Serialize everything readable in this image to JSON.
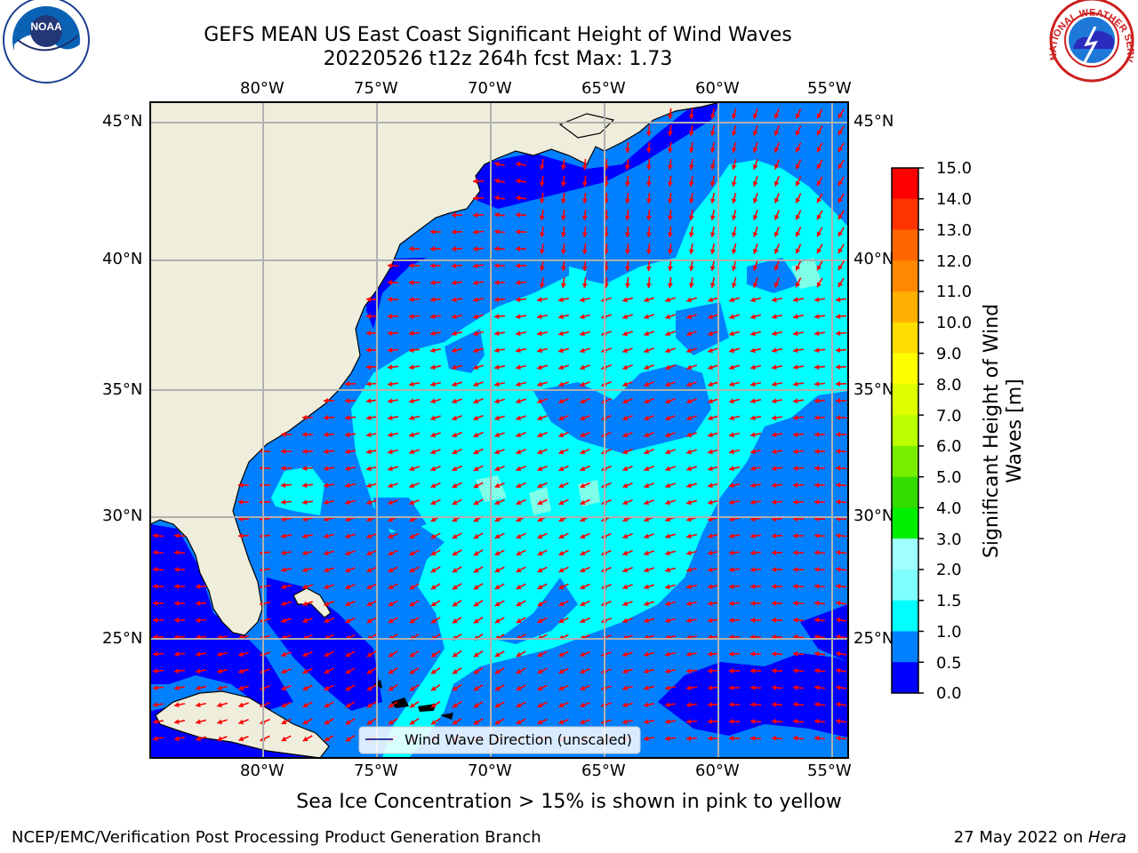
{
  "title": {
    "line1": "GEFS MEAN US East Coast Significant Height of Wind Waves",
    "line2": "20220526 t12z 264h fcst   Max: 1.73"
  },
  "map": {
    "lon_labels": [
      "80°W",
      "75°W",
      "70°W",
      "65°W",
      "60°W",
      "55°W"
    ],
    "lat_labels": [
      "45°N",
      "40°N",
      "35°N",
      "30°N",
      "25°N"
    ],
    "lon_range": [
      -85,
      -54.3
    ],
    "lat_range": [
      20.5,
      45.7
    ],
    "legend_label": "Wind Wave Direction (unscaled)",
    "colors": {
      "land": "#efeedc",
      "ocean_low": "#0000ff",
      "ocean_mid": "#0080ff",
      "ocean_high": "#00ffff",
      "ocean_top": "#7fffe8",
      "arrows": "#ff0000",
      "grid": "#b0b0b0"
    }
  },
  "colorbar": {
    "label_line1": "Significant Height of Wind",
    "label_line2": "Waves [m]",
    "ticks": [
      "15.0",
      "14.0",
      "13.0",
      "12.0",
      "11.0",
      "10.0",
      "9.0",
      "8.0",
      "7.0",
      "6.0",
      "5.0",
      "4.0",
      "3.0",
      "2.0",
      "1.5",
      "1.0",
      "0.5",
      "0.0"
    ],
    "colors": [
      "#0000ff",
      "#0080ff",
      "#00ffff",
      "#7fffff",
      "#a0ffff",
      "#55ff80",
      "#00ee00",
      "#33dd00",
      "#77ee00",
      "#bbff00",
      "#ddff00",
      "#ffff00",
      "#ffdd00",
      "#ffb000",
      "#ff8800",
      "#ff6600",
      "#ff3300",
      "#ff0000"
    ]
  },
  "footnote": "Sea Ice Concentration > 15% is shown in pink to yellow",
  "credit": "NCEP/EMC/Verification Post Processing Product Generation Branch",
  "date": {
    "text": "27 May 2022 on ",
    "host": "Hera"
  },
  "logos": {
    "noaa": "NOAA",
    "nws": "NATIONAL WEATHER SERVICE"
  }
}
